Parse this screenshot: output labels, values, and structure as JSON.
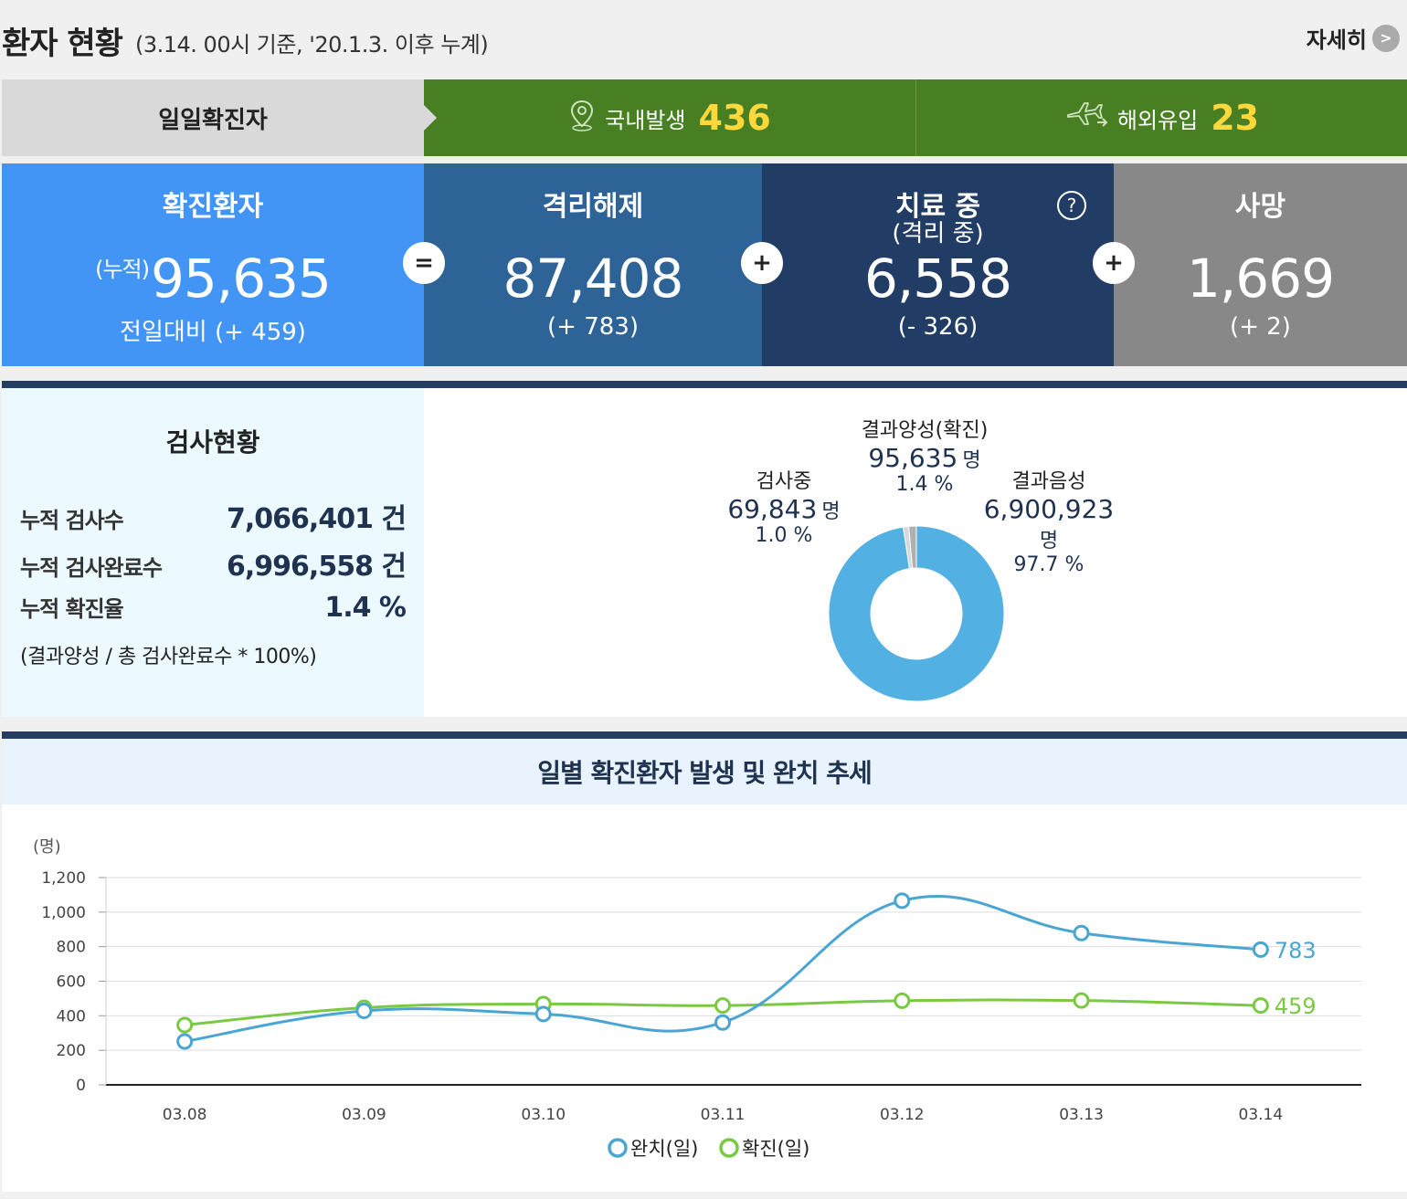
{
  "header": {
    "title": "환자 현황",
    "subtitle": "(3.14. 00시 기준, '20.1.3. 이후 누계)",
    "more_label": "자세히",
    "more_chevron": ">"
  },
  "daily": {
    "label": "일일확진자",
    "domestic_label": "국내발생",
    "domestic_value": "436",
    "overseas_label": "해외유입",
    "overseas_value": "23"
  },
  "stats": {
    "confirmed": {
      "title": "확진환자",
      "prefix": "(누적)",
      "value": "95,635",
      "delta": "전일대비 (+ 459)"
    },
    "released": {
      "title": "격리해제",
      "value": "87,408",
      "delta": "(+ 783)"
    },
    "treatment": {
      "title": "치료 중",
      "subtitle": "(격리 중)",
      "value": "6,558",
      "delta": "(- 326)",
      "help": "?"
    },
    "deaths": {
      "title": "사망",
      "value": "1,669",
      "delta": "(+ 2)"
    },
    "ops": {
      "eq": "=",
      "plus1": "+",
      "plus2": "+"
    }
  },
  "tests": {
    "title": "검사현황",
    "rows": [
      {
        "label": "누적 검사수",
        "value": "7,066,401 건"
      },
      {
        "label": "누적 검사완료수",
        "value": "6,996,558 건"
      },
      {
        "label": "누적 확진율",
        "value": "1.4 %"
      }
    ],
    "note": "(결과양성 / 총 검사완료수 * 100%)",
    "donut": {
      "positive": {
        "label": "결과양성(확진)",
        "value": "95,635",
        "unit": "명",
        "pct": "1.4 %",
        "fraction": 0.014,
        "color": "#b0b0b0"
      },
      "testing": {
        "label": "검사중",
        "value": "69,843",
        "unit": "명",
        "pct": "1.0 %",
        "fraction": 0.01,
        "color": "#d8d8d8"
      },
      "negative": {
        "label": "결과음성",
        "value": "6,900,923",
        "unit": "명",
        "pct": "97.7 %",
        "fraction": 0.977,
        "color": "#52b0e2"
      }
    }
  },
  "trend": {
    "title": "일별 확진환자 발생 및 완치 추세"
  },
  "chart_data": {
    "type": "line",
    "title": "",
    "ylabel": "(명)",
    "xlabel": "",
    "ylim": [
      0,
      1200
    ],
    "yticks": [
      0,
      200,
      400,
      600,
      800,
      1000,
      1200
    ],
    "ytick_labels": [
      "0",
      "200",
      "400",
      "600",
      "800",
      "1,000",
      "1,200"
    ],
    "categories": [
      "03.08",
      "03.09",
      "03.10",
      "03.11",
      "03.12",
      "03.13",
      "03.14"
    ],
    "series": [
      {
        "name": "완치(일)",
        "color": "#4aa5d3",
        "values": [
          251,
          428,
          410,
          361,
          1066,
          879,
          783
        ],
        "end_label": "783"
      },
      {
        "name": "확진(일)",
        "color": "#7ac943",
        "values": [
          346,
          446,
          468,
          459,
          487,
          488,
          459
        ],
        "end_label": "459"
      }
    ],
    "legend": "bottom",
    "grid": true
  }
}
